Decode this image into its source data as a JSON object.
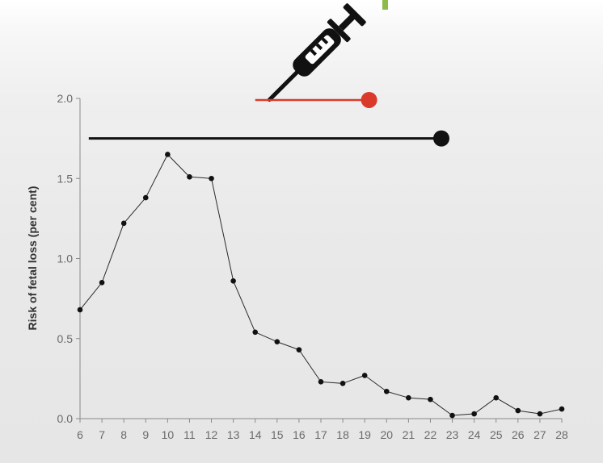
{
  "chart_data": {
    "type": "line",
    "title": "",
    "xlabel": "",
    "ylabel": "Risk of fetal loss (per cent)",
    "x": [
      6,
      7,
      8,
      9,
      10,
      11,
      12,
      13,
      14,
      15,
      16,
      17,
      18,
      19,
      20,
      21,
      22,
      23,
      24,
      25,
      26,
      27,
      28
    ],
    "series": [
      {
        "values": [
          0.68,
          0.85,
          1.22,
          1.38,
          1.65,
          1.51,
          1.5,
          0.86,
          0.54,
          0.48,
          0.43,
          0.23,
          0.22,
          0.27,
          0.17,
          0.13,
          0.12,
          0.02,
          0.03,
          0.13,
          0.05,
          0.03,
          0.06
        ],
        "color": "#2b2b2b"
      }
    ],
    "xlim": [
      6,
      28
    ],
    "ylim": [
      0,
      2.0
    ],
    "x_ticks": [
      "6",
      "7",
      "8",
      "9",
      "10",
      "11",
      "12",
      "13",
      "14",
      "15",
      "16",
      "17",
      "18",
      "19",
      "20",
      "21",
      "22",
      "23",
      "24",
      "25",
      "26",
      "27",
      "28"
    ],
    "y_ticks": [
      "0.0",
      "0.5",
      "1.0",
      "1.5",
      "2.0"
    ],
    "grid": false,
    "legend": "none",
    "annotations": [
      {
        "name": "red-range",
        "x_start": 14,
        "x_end": 19.2,
        "y": 1.99,
        "color": "#d93a2b"
      },
      {
        "name": "black-range",
        "x_start": 6.4,
        "x_end": 22.5,
        "y": 1.75,
        "color": "#111111"
      }
    ]
  },
  "icons": {
    "syringe": "syringe-icon"
  },
  "colors": {
    "axis": "#8a8a8a",
    "accent_green": "#8dbb4a"
  }
}
